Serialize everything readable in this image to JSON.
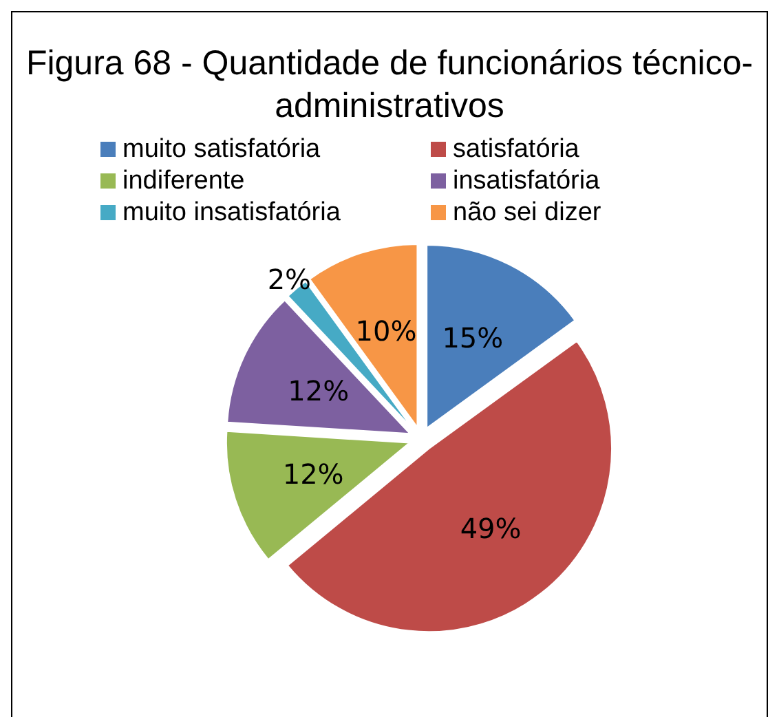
{
  "chart_data": {
    "type": "pie",
    "title": "Figura 68 - Quantidade de funcionários técnico-administrativos",
    "categories": [
      "muito satisfatória",
      "satisfatória",
      "indiferente",
      "insatisfatória",
      "muito insatisfatória",
      "não sei dizer"
    ],
    "values": [
      15,
      49,
      12,
      12,
      2,
      10
    ],
    "value_labels": [
      "15%",
      "49%",
      "12%",
      "12%",
      "2%",
      "10%"
    ],
    "colors": [
      "#4a7ebb",
      "#be4b48",
      "#98b954",
      "#7d60a0",
      "#46aac5",
      "#f79646"
    ],
    "legend": "top"
  }
}
